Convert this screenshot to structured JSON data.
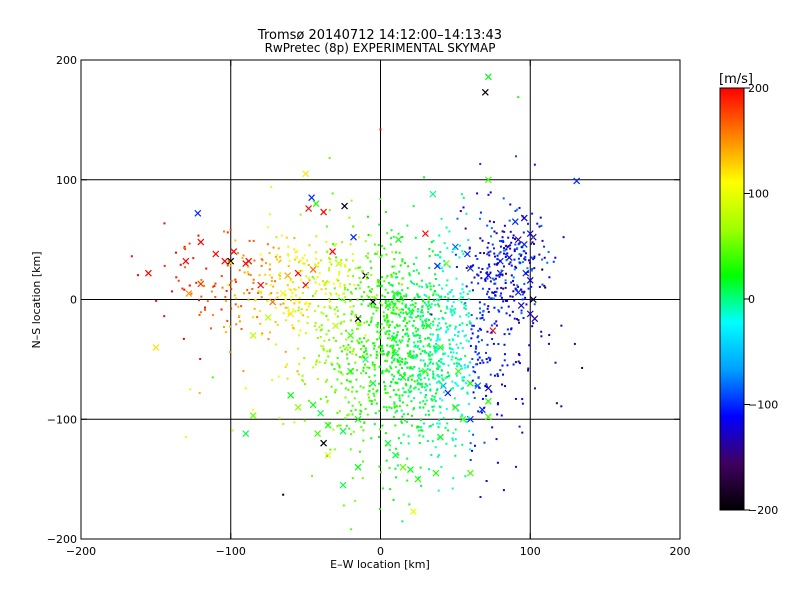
{
  "chart_data": {
    "type": "scatter",
    "title": "Tromsø 20140712 14:12:00–14:13:43",
    "subtitle": "RwPretec (8p) EXPERIMENTAL SKYMAP",
    "xlabel": "E–W location [km]",
    "ylabel": "N–S location [km]",
    "xlim": [
      -200,
      200
    ],
    "ylim": [
      -200,
      200
    ],
    "xticks": [
      -200,
      -100,
      0,
      100,
      200
    ],
    "yticks": [
      -200,
      -100,
      0,
      100,
      200
    ],
    "xtick_labels": [
      "−200",
      "−100",
      "0",
      "100",
      "200"
    ],
    "ytick_labels": [
      "−200",
      "−100",
      "0",
      "100",
      "200"
    ],
    "grid": true,
    "colorbar": {
      "label": "[m/s]",
      "range": [
        -200,
        200
      ],
      "ticks": [
        200,
        100,
        0,
        -100,
        -200
      ],
      "tick_labels": [
        "200",
        "100",
        "0",
        "−100",
        "−200"
      ],
      "colors": [
        "#000000",
        "#400060",
        "#0000ff",
        "#00a0ff",
        "#00ffff",
        "#00ff00",
        "#a0ff00",
        "#ffff00",
        "#ff8000",
        "#ff0000"
      ]
    },
    "marker_legend": {
      "cross": "large marker (x)",
      "dot": "small marker"
    },
    "points": [
      {
        "x": 0,
        "y": 142,
        "v": 200,
        "m": "dot"
      },
      {
        "x": 72,
        "y": 186,
        "v": 20,
        "m": "x"
      },
      {
        "x": 70,
        "y": 173,
        "v": -200,
        "m": "x"
      },
      {
        "x": 92,
        "y": 169,
        "v": 30,
        "m": "dot"
      },
      {
        "x": 131,
        "y": 99,
        "v": -100,
        "m": "x"
      },
      {
        "x": 72,
        "y": 100,
        "v": 40,
        "m": "x"
      },
      {
        "x": -50,
        "y": 105,
        "v": 120,
        "m": "x"
      },
      {
        "x": -73,
        "y": 94,
        "v": 100,
        "m": "dot"
      },
      {
        "x": -122,
        "y": 72,
        "v": -100,
        "m": "x"
      },
      {
        "x": -46,
        "y": 85,
        "v": -100,
        "m": "x"
      },
      {
        "x": -43,
        "y": 80,
        "v": 30,
        "m": "x"
      },
      {
        "x": -48,
        "y": 76,
        "v": 200,
        "m": "x"
      },
      {
        "x": -38,
        "y": 73,
        "v": 200,
        "m": "x"
      },
      {
        "x": -24,
        "y": 78,
        "v": -200,
        "m": "x"
      },
      {
        "x": 35,
        "y": 88,
        "v": 0,
        "m": "x"
      },
      {
        "x": -120,
        "y": 48,
        "v": 200,
        "m": "x"
      },
      {
        "x": -110,
        "y": 38,
        "v": 200,
        "m": "x"
      },
      {
        "x": -104,
        "y": 32,
        "v": 200,
        "m": "x"
      },
      {
        "x": -98,
        "y": 40,
        "v": 200,
        "m": "x"
      },
      {
        "x": -100,
        "y": 32,
        "v": -200,
        "m": "x"
      },
      {
        "x": -90,
        "y": 30,
        "v": 200,
        "m": "x"
      },
      {
        "x": -88,
        "y": 32,
        "v": 200,
        "m": "x"
      },
      {
        "x": -155,
        "y": 22,
        "v": 200,
        "m": "x"
      },
      {
        "x": -130,
        "y": 32,
        "v": 200,
        "m": "x"
      },
      {
        "x": -128,
        "y": 5,
        "v": 150,
        "m": "x"
      },
      {
        "x": -120,
        "y": 13,
        "v": 180,
        "m": "x"
      },
      {
        "x": -80,
        "y": 12,
        "v": 200,
        "m": "x"
      },
      {
        "x": -62,
        "y": 20,
        "v": 140,
        "m": "x"
      },
      {
        "x": -55,
        "y": 22,
        "v": 200,
        "m": "x"
      },
      {
        "x": -50,
        "y": 12,
        "v": 200,
        "m": "x"
      },
      {
        "x": -45,
        "y": 25,
        "v": 160,
        "m": "x"
      },
      {
        "x": -60,
        "y": -12,
        "v": 120,
        "m": "x"
      },
      {
        "x": -72,
        "y": -2,
        "v": 160,
        "m": "x"
      },
      {
        "x": -65,
        "y": 5,
        "v": 100,
        "m": "x"
      },
      {
        "x": -28,
        "y": 30,
        "v": 80,
        "m": "x"
      },
      {
        "x": -32,
        "y": 40,
        "v": 200,
        "m": "x"
      },
      {
        "x": -18,
        "y": 52,
        "v": -100,
        "m": "x"
      },
      {
        "x": 12,
        "y": 50,
        "v": 20,
        "m": "x"
      },
      {
        "x": 30,
        "y": 55,
        "v": 200,
        "m": "x"
      },
      {
        "x": 50,
        "y": 44,
        "v": -80,
        "m": "x"
      },
      {
        "x": 58,
        "y": 38,
        "v": -100,
        "m": "x"
      },
      {
        "x": 44,
        "y": 30,
        "v": 60,
        "m": "x"
      },
      {
        "x": 38,
        "y": 28,
        "v": -100,
        "m": "x"
      },
      {
        "x": 60,
        "y": 26,
        "v": -100,
        "m": "x"
      },
      {
        "x": 80,
        "y": 32,
        "v": -100,
        "m": "x"
      },
      {
        "x": 86,
        "y": 35,
        "v": -120,
        "m": "x"
      },
      {
        "x": 90,
        "y": 65,
        "v": -100,
        "m": "x"
      },
      {
        "x": 96,
        "y": 68,
        "v": -120,
        "m": "x"
      },
      {
        "x": 100,
        "y": 55,
        "v": -120,
        "m": "x"
      },
      {
        "x": 102,
        "y": 52,
        "v": -150,
        "m": "x"
      },
      {
        "x": 92,
        "y": 50,
        "v": -140,
        "m": "x"
      },
      {
        "x": 96,
        "y": 46,
        "v": -100,
        "m": "x"
      },
      {
        "x": 72,
        "y": 20,
        "v": -120,
        "m": "x"
      },
      {
        "x": 80,
        "y": 22,
        "v": -150,
        "m": "x"
      },
      {
        "x": 97,
        "y": 22,
        "v": -100,
        "m": "x"
      },
      {
        "x": 100,
        "y": 16,
        "v": -120,
        "m": "x"
      },
      {
        "x": 92,
        "y": 6,
        "v": -100,
        "m": "x"
      },
      {
        "x": 94,
        "y": -5,
        "v": -120,
        "m": "x"
      },
      {
        "x": 100,
        "y": -12,
        "v": -130,
        "m": "x"
      },
      {
        "x": 103,
        "y": -16,
        "v": -130,
        "m": "x"
      },
      {
        "x": 102,
        "y": 0,
        "v": -200,
        "m": "x"
      },
      {
        "x": 75,
        "y": -26,
        "v": 200,
        "m": "x"
      },
      {
        "x": -10,
        "y": 20,
        "v": -200,
        "m": "x"
      },
      {
        "x": -5,
        "y": -2,
        "v": -200,
        "m": "x"
      },
      {
        "x": -15,
        "y": -16,
        "v": -200,
        "m": "x"
      },
      {
        "x": -30,
        "y": -22,
        "v": 80,
        "m": "x"
      },
      {
        "x": -20,
        "y": -30,
        "v": 40,
        "m": "x"
      },
      {
        "x": 5,
        "y": -5,
        "v": 20,
        "m": "x"
      },
      {
        "x": 10,
        "y": 5,
        "v": 0,
        "m": "x"
      },
      {
        "x": 20,
        "y": -10,
        "v": 10,
        "m": "x"
      },
      {
        "x": 32,
        "y": -22,
        "v": 20,
        "m": "x"
      },
      {
        "x": 40,
        "y": -40,
        "v": 30,
        "m": "x"
      },
      {
        "x": 10,
        "y": -45,
        "v": 10,
        "m": "x"
      },
      {
        "x": -10,
        "y": -50,
        "v": 0,
        "m": "x"
      },
      {
        "x": -20,
        "y": -60,
        "v": 10,
        "m": "x"
      },
      {
        "x": -5,
        "y": -70,
        "v": 10,
        "m": "x"
      },
      {
        "x": 15,
        "y": -65,
        "v": 20,
        "m": "x"
      },
      {
        "x": 30,
        "y": -60,
        "v": 40,
        "m": "x"
      },
      {
        "x": 52,
        "y": -60,
        "v": 40,
        "m": "x"
      },
      {
        "x": 60,
        "y": -70,
        "v": 20,
        "m": "x"
      },
      {
        "x": 65,
        "y": -72,
        "v": -80,
        "m": "x"
      },
      {
        "x": 72,
        "y": -74,
        "v": -120,
        "m": "x"
      },
      {
        "x": 42,
        "y": -72,
        "v": -60,
        "m": "x"
      },
      {
        "x": 45,
        "y": -78,
        "v": -100,
        "m": "x"
      },
      {
        "x": 50,
        "y": -90,
        "v": 30,
        "m": "x"
      },
      {
        "x": 55,
        "y": -100,
        "v": 40,
        "m": "x"
      },
      {
        "x": 60,
        "y": -100,
        "v": -100,
        "m": "x"
      },
      {
        "x": 72,
        "y": -98,
        "v": 40,
        "m": "x"
      },
      {
        "x": 68,
        "y": -92,
        "v": -100,
        "m": "x"
      },
      {
        "x": 72,
        "y": -85,
        "v": 30,
        "m": "x"
      },
      {
        "x": -60,
        "y": -80,
        "v": 20,
        "m": "x"
      },
      {
        "x": -55,
        "y": -90,
        "v": 60,
        "m": "x"
      },
      {
        "x": -45,
        "y": -88,
        "v": 20,
        "m": "x"
      },
      {
        "x": -40,
        "y": -95,
        "v": 10,
        "m": "x"
      },
      {
        "x": -35,
        "y": -105,
        "v": 20,
        "m": "x"
      },
      {
        "x": -25,
        "y": -110,
        "v": 10,
        "m": "x"
      },
      {
        "x": -15,
        "y": -100,
        "v": 20,
        "m": "x"
      },
      {
        "x": -42,
        "y": -112,
        "v": 40,
        "m": "x"
      },
      {
        "x": -38,
        "y": -120,
        "v": -200,
        "m": "x"
      },
      {
        "x": -35,
        "y": -130,
        "v": 100,
        "m": "x"
      },
      {
        "x": -90,
        "y": -112,
        "v": 10,
        "m": "x"
      },
      {
        "x": -85,
        "y": -97,
        "v": 50,
        "m": "x"
      },
      {
        "x": -25,
        "y": -155,
        "v": 10,
        "m": "x"
      },
      {
        "x": -15,
        "y": -140,
        "v": 20,
        "m": "x"
      },
      {
        "x": 10,
        "y": -130,
        "v": 10,
        "m": "x"
      },
      {
        "x": 15,
        "y": -140,
        "v": 50,
        "m": "x"
      },
      {
        "x": 20,
        "y": -142,
        "v": 20,
        "m": "x"
      },
      {
        "x": 25,
        "y": -150,
        "v": 30,
        "m": "x"
      },
      {
        "x": 37,
        "y": -145,
        "v": 30,
        "m": "x"
      },
      {
        "x": 60,
        "y": -145,
        "v": 40,
        "m": "x"
      },
      {
        "x": 5,
        "y": -120,
        "v": 10,
        "m": "x"
      },
      {
        "x": 40,
        "y": -115,
        "v": 20,
        "m": "x"
      },
      {
        "x": -75,
        "y": -15,
        "v": 80,
        "m": "x"
      },
      {
        "x": -85,
        "y": -30,
        "v": 80,
        "m": "x"
      },
      {
        "x": -150,
        "y": -40,
        "v": 120,
        "m": "x"
      },
      {
        "x": -127,
        "y": -75,
        "v": 100,
        "m": "dot"
      },
      {
        "x": -130,
        "y": -115,
        "v": 100,
        "m": "dot"
      },
      {
        "x": -112,
        "y": -65,
        "v": 40,
        "m": "dot"
      },
      {
        "x": -65,
        "y": -163,
        "v": -200,
        "m": "dot"
      },
      {
        "x": 22,
        "y": -177,
        "v": 100,
        "m": "x"
      },
      {
        "x": 108,
        "y": 25,
        "v": -200,
        "m": "dot"
      },
      {
        "x": 110,
        "y": 10,
        "v": -200,
        "m": "dot"
      }
    ]
  }
}
